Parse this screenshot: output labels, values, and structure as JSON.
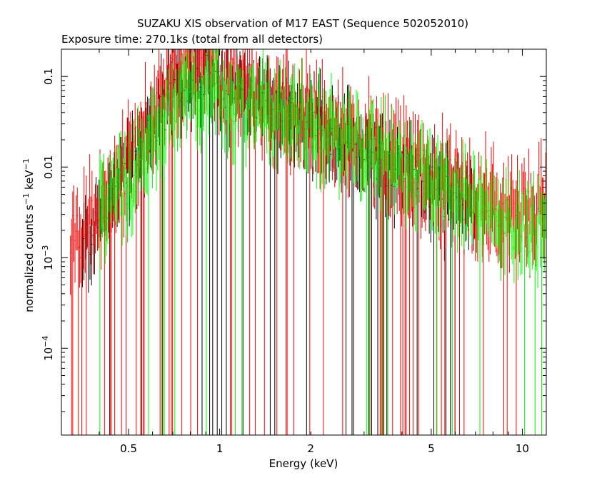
{
  "chart_data": {
    "type": "scatter",
    "title": "SUZAKU XIS observation of M17 EAST (Sequence 502052010)",
    "subtitle": "Exposure time: 270.1ks (total from all detectors)",
    "xlabel": "Energy (keV)",
    "ylabel": {
      "base": "normalized counts s",
      "exp1": "−1",
      "mid": " keV",
      "exp2": "−1"
    },
    "xscale": "log",
    "yscale": "log",
    "xlim": [
      0.3,
      12
    ],
    "ylim": [
      1.1e-05,
      0.2
    ],
    "grid": false,
    "x_ticks": [
      {
        "value": 0.5,
        "label": "0.5"
      },
      {
        "value": 1,
        "label": "1"
      },
      {
        "value": 2,
        "label": "2"
      },
      {
        "value": 5,
        "label": "5"
      },
      {
        "value": 10,
        "label": "10"
      }
    ],
    "y_ticks": [
      {
        "value": 0.1,
        "label": "0.1"
      },
      {
        "value": 0.01,
        "label": "0.01"
      },
      {
        "value": 0.001,
        "label": "10",
        "exp": "−3"
      },
      {
        "value": 0.0001,
        "label": "10",
        "exp": "−4"
      }
    ],
    "series": [
      {
        "color": "#000000",
        "scatter": 0.25,
        "dropout": 0.08,
        "count": 260,
        "profile": [
          [
            0.35,
            0.0012
          ],
          [
            0.4,
            0.0025
          ],
          [
            0.45,
            0.005
          ],
          [
            0.5,
            0.009
          ],
          [
            0.6,
            0.025
          ],
          [
            0.7,
            0.06
          ],
          [
            0.8,
            0.1
          ],
          [
            0.9,
            0.1
          ],
          [
            1.0,
            0.075
          ],
          [
            1.2,
            0.06
          ],
          [
            1.5,
            0.045
          ],
          [
            2.0,
            0.03
          ],
          [
            3.0,
            0.015
          ],
          [
            4.0,
            0.009
          ],
          [
            5.0,
            0.006
          ],
          [
            6.0,
            0.004
          ],
          [
            7.0,
            0.003
          ]
        ]
      },
      {
        "color": "#ff0000",
        "scatter": 0.3,
        "dropout": 0.12,
        "count": 420,
        "profile": [
          [
            0.32,
            0.0015
          ],
          [
            0.4,
            0.003
          ],
          [
            0.5,
            0.012
          ],
          [
            0.6,
            0.04
          ],
          [
            0.7,
            0.1
          ],
          [
            0.8,
            0.14
          ],
          [
            0.9,
            0.15
          ],
          [
            1.0,
            0.1
          ],
          [
            1.2,
            0.07
          ],
          [
            1.5,
            0.05
          ],
          [
            2.0,
            0.035
          ],
          [
            3.0,
            0.02
          ],
          [
            4.0,
            0.012
          ],
          [
            5.0,
            0.008
          ],
          [
            6.0,
            0.006
          ],
          [
            8.0,
            0.004
          ],
          [
            10.0,
            0.003
          ],
          [
            12.0,
            0.004
          ]
        ]
      },
      {
        "color": "#00ff00",
        "scatter": 0.25,
        "dropout": 0.08,
        "count": 340,
        "profile": [
          [
            0.4,
            0.004
          ],
          [
            0.5,
            0.006
          ],
          [
            0.6,
            0.02
          ],
          [
            0.7,
            0.05
          ],
          [
            0.8,
            0.07
          ],
          [
            0.9,
            0.07
          ],
          [
            1.0,
            0.06
          ],
          [
            1.2,
            0.05
          ],
          [
            1.5,
            0.045
          ],
          [
            2.0,
            0.03
          ],
          [
            3.0,
            0.016
          ],
          [
            4.0,
            0.01
          ],
          [
            5.0,
            0.007
          ],
          [
            6.0,
            0.005
          ],
          [
            8.0,
            0.003
          ],
          [
            10.0,
            0.002
          ],
          [
            12.0,
            0.002
          ]
        ]
      }
    ]
  }
}
